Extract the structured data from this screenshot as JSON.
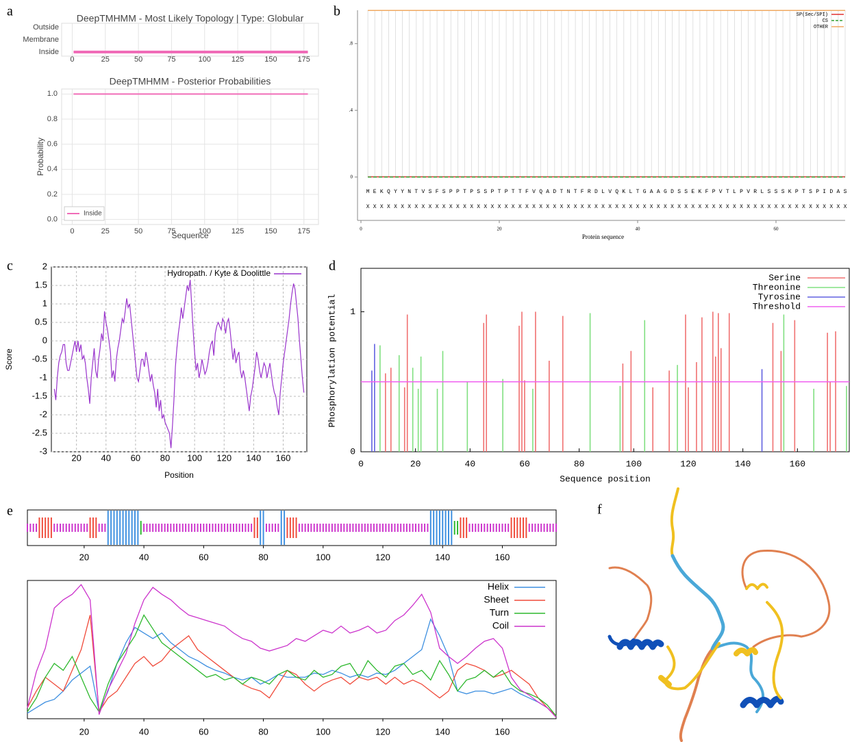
{
  "panel_labels": [
    "a",
    "b",
    "c",
    "d",
    "e",
    "f"
  ],
  "chart_data": [
    {
      "type": "topology",
      "title": "DeepTMHMM - Most Likely Topology | Type: Globular",
      "ycategories": [
        "Outside",
        "Membrane",
        "Inside"
      ],
      "segments": [
        {
          "state": "Inside",
          "start": 1,
          "end": 178
        }
      ],
      "color": "#f06cb8",
      "xlim": [
        -8,
        186
      ],
      "xticks": [
        0,
        25,
        50,
        75,
        100,
        125,
        150,
        175
      ],
      "grid": true
    },
    {
      "type": "line",
      "title": "DeepTMHMM - Posterior Probabilities",
      "xlabel": "Sequence",
      "ylabel": "Probability",
      "x": [
        1,
        178
      ],
      "series": [
        {
          "name": "Inside",
          "color": "#f06cb8",
          "values": [
            1,
            1
          ]
        }
      ],
      "xlim": [
        -8,
        186
      ],
      "xticks": [
        0,
        25,
        50,
        75,
        100,
        125,
        150,
        175
      ],
      "ylim": [
        -0.04,
        1.04
      ],
      "yticks": [
        {
          "value": 0,
          "label": "0.0"
        },
        0.2,
        0.4,
        0.6,
        0.8,
        {
          "value": 1,
          "label": "1.0"
        }
      ],
      "grid": true,
      "legend": "lower left"
    },
    {
      "type": "line",
      "xlabel": "Protein sequence",
      "sequence": "MEKQYYNTVSFSPPTPSSPTPTTFVQADTNTFRDLVQKLTGAAGDSSEKFPVTLPVRLSSSKPTSPIDAS",
      "sequence2": "XXXXXXXXXXXXXXXXXXXXXXXXXXXXXXXXXXXXXXXXXXXXXXXXXXXXXXXXXXXXXXXXXXXXXX",
      "x": [
        1,
        70
      ],
      "series": [
        {
          "name": "SP(Sec/SPI)",
          "color": "#e03030",
          "values": [
            0.001,
            0.001
          ]
        },
        {
          "name": "CS",
          "color": "#30a030",
          "dash": true,
          "values": [
            0,
            0
          ]
        },
        {
          "name": "OTHER",
          "color": "#f0a860",
          "values": [
            0.999,
            0.999
          ]
        }
      ],
      "xlim": [
        0,
        70
      ],
      "xticks": [
        0,
        20,
        40,
        60
      ],
      "ylim": [
        -0.26,
        1
      ],
      "yticks": [
        0,
        {
          "value": 0.4,
          "label": ".4"
        },
        {
          "value": 0.8,
          "label": ".8"
        }
      ],
      "grid": true,
      "legend": "upper right"
    },
    {
      "type": "line",
      "xlabel": "Position",
      "ylabel": "Score",
      "x": [
        5,
        6,
        7,
        8,
        9,
        10,
        11,
        12,
        13,
        14,
        15,
        16,
        17,
        18,
        19,
        20,
        21,
        22,
        23,
        24,
        25,
        26,
        27,
        28,
        29,
        30,
        31,
        32,
        33,
        34,
        35,
        36,
        37,
        38,
        39,
        40,
        41,
        42,
        43,
        44,
        45,
        46,
        47,
        48,
        49,
        50,
        51,
        52,
        53,
        54,
        55,
        56,
        57,
        58,
        59,
        60,
        61,
        62,
        63,
        64,
        65,
        66,
        67,
        68,
        69,
        70,
        71,
        72,
        73,
        74,
        75,
        76,
        77,
        78,
        79,
        80,
        81,
        82,
        83,
        84,
        85,
        86,
        87,
        88,
        89,
        90,
        91,
        92,
        93,
        94,
        95,
        96,
        97,
        98,
        99,
        100,
        101,
        102,
        103,
        104,
        105,
        106,
        107,
        108,
        109,
        110,
        111,
        112,
        113,
        114,
        115,
        116,
        117,
        118,
        119,
        120,
        121,
        122,
        123,
        124,
        125,
        126,
        127,
        128,
        129,
        130,
        131,
        132,
        133,
        134,
        135,
        136,
        137,
        138,
        139,
        140,
        141,
        142,
        143,
        144,
        145,
        146,
        147,
        148,
        149,
        150,
        151,
        152,
        153,
        154,
        155,
        156,
        157,
        158,
        159,
        160,
        161,
        162,
        163,
        164,
        165,
        166,
        167,
        168,
        169,
        170,
        171,
        172,
        173,
        174
      ],
      "series": [
        {
          "name": "Hydropath. / Kyte & Doolittle",
          "color": "#9933cc",
          "values": [
            -1.3,
            -1.6,
            -1.0,
            -0.6,
            -0.4,
            -0.3,
            -0.1,
            -0.1,
            -0.6,
            -0.8,
            -0.8,
            -0.6,
            -0.4,
            -0.2,
            0,
            -0.3,
            0,
            -0.3,
            -0.1,
            -0.5,
            -0.4,
            -0.6,
            -1.0,
            -1.3,
            -1.7,
            -1.0,
            -0.6,
            -0.2,
            -0.8,
            -1.0,
            -0.5,
            -0.2,
            0.2,
            0.0,
            0.8,
            0.5,
            0.3,
            0.0,
            -0.3,
            -1.0,
            -0.8,
            -1.1,
            -0.5,
            -0.2,
            0.0,
            0.3,
            0.6,
            0.5,
            0.8,
            1.15,
            0.9,
            1.0,
            0.6,
            0.2,
            -0.2,
            -0.6,
            -1.0,
            -1.1,
            -0.8,
            -0.5,
            -0.5,
            -0.7,
            -0.3,
            -0.5,
            -0.8,
            -1.1,
            -0.9,
            -1.2,
            -1.4,
            -1.8,
            -1.3,
            -1.9,
            -1.6,
            -2.1,
            -2.0,
            -2.2,
            -2.3,
            -2.4,
            -2.5,
            -2.9,
            -2.3,
            -1.6,
            -0.7,
            -0.2,
            0.2,
            0.5,
            0.9,
            0.6,
            0.9,
            1.2,
            1.5,
            1.35,
            1.65,
            1.0,
            0.3,
            -0.3,
            -0.8,
            -0.6,
            -1.0,
            -0.8,
            -0.5,
            -0.7,
            -0.9,
            -0.8,
            -0.6,
            -0.3,
            -0.1,
            0.0,
            -0.4,
            0.2,
            0.4,
            0.5,
            0.4,
            0.3,
            0.6,
            0.5,
            0.2,
            0.5,
            0.6,
            0.3,
            -0.1,
            -0.5,
            -0.2,
            -0.6,
            -0.4,
            -0.3,
            -0.8,
            -1.0,
            -0.8,
            -1.0,
            -1.3,
            -1.6,
            -1.9,
            -1.5,
            -1.3,
            -1.0,
            -0.7,
            -0.3,
            -0.5,
            -0.8,
            -1.0,
            -0.8,
            -0.6,
            -0.7,
            -1.0,
            -0.8,
            -0.6,
            -0.9,
            -1.2,
            -1.4,
            -1.5,
            -1.8,
            -2.0,
            -1.4,
            -1.0,
            -0.6,
            -0.3,
            0.0,
            0.3,
            0.6,
            1.0,
            1.3,
            1.55,
            1.4,
            1.0,
            0.6,
            0.0,
            -0.5,
            -1.0,
            -1.4
          ]
        }
      ],
      "xlim": [
        3,
        176
      ],
      "xticks": [
        20,
        40,
        60,
        80,
        100,
        120,
        140,
        160
      ],
      "ylim": [
        -3,
        2
      ],
      "yticks": [
        -3,
        -2.5,
        -2,
        -1.5,
        -1,
        -0.5,
        0,
        0.5,
        1,
        1.5,
        2
      ],
      "grid": true,
      "legend": "upper right"
    },
    {
      "type": "bar",
      "xlabel": "Sequence position",
      "ylabel": "Phosphorylation potential",
      "series": [
        {
          "name": "Serine",
          "color": "#f07070",
          "x": [
            9,
            11,
            16,
            17,
            45,
            46,
            58,
            59,
            60,
            64,
            69,
            74,
            96,
            99,
            107,
            113,
            119,
            120,
            123,
            125,
            129,
            130,
            131,
            132,
            135,
            151,
            154,
            159,
            171,
            172,
            174
          ],
          "values": [
            0.56,
            0.6,
            0.46,
            0.98,
            0.92,
            0.98,
            0.9,
            1.0,
            0.51,
            1.0,
            0.65,
            0.97,
            0.63,
            0.72,
            0.46,
            0.58,
            0.98,
            0.46,
            0.64,
            0.96,
            1.0,
            0.68,
            0.99,
            0.74,
            0.99,
            0.92,
            0.72,
            0.94,
            0.85,
            0.5,
            0.86
          ]
        },
        {
          "name": "Threonine",
          "color": "#80e080",
          "x": [
            7,
            14,
            19,
            21,
            22,
            28,
            30,
            39,
            52,
            63,
            84,
            95,
            104,
            116,
            155,
            166,
            178
          ],
          "values": [
            0.76,
            0.69,
            0.6,
            0.45,
            0.68,
            0.45,
            0.72,
            0.5,
            0.52,
            0.45,
            0.99,
            0.47,
            0.94,
            0.62,
            0.98,
            0.45,
            0.47
          ]
        },
        {
          "name": "Tyrosine",
          "color": "#6060e0",
          "x": [
            4,
            5,
            147
          ],
          "values": [
            0.58,
            0.77,
            0.59
          ]
        },
        {
          "name": "Threshold",
          "color": "#f060f0",
          "style": "line",
          "x": [
            0,
            179
          ],
          "values": [
            0.5,
            0.5
          ]
        }
      ],
      "xlim": [
        0,
        179
      ],
      "xticks": [
        0,
        20,
        40,
        60,
        80,
        100,
        120,
        140,
        160
      ],
      "ylim": [
        0,
        1.31
      ],
      "yticks": [
        0,
        1
      ],
      "legend": "upper right"
    },
    {
      "type": "secondary-structure",
      "x": [
        1,
        4,
        7,
        10,
        13,
        16,
        19,
        22,
        25,
        28,
        31,
        34,
        37,
        40,
        43,
        46,
        49,
        52,
        55,
        58,
        61,
        64,
        67,
        70,
        73,
        76,
        79,
        82,
        85,
        88,
        91,
        94,
        97,
        100,
        103,
        106,
        109,
        112,
        115,
        118,
        121,
        124,
        127,
        130,
        133,
        136,
        139,
        142,
        145,
        148,
        151,
        154,
        157,
        160,
        163,
        166,
        169,
        172,
        175,
        178
      ],
      "series": [
        {
          "name": "Helix",
          "color": "#3d8fe0",
          "segments": [
            [
              28,
              38
            ],
            [
              79,
              80
            ],
            [
              86,
              87
            ],
            [
              136,
              143
            ]
          ],
          "values": [
            0.04,
            0.08,
            0.12,
            0.14,
            0.2,
            0.28,
            0.33,
            0.38,
            0.05,
            0.2,
            0.4,
            0.55,
            0.66,
            0.62,
            0.58,
            0.62,
            0.55,
            0.5,
            0.45,
            0.42,
            0.38,
            0.35,
            0.33,
            0.3,
            0.28,
            0.3,
            0.25,
            0.28,
            0.32,
            0.3,
            0.3,
            0.3,
            0.33,
            0.32,
            0.35,
            0.33,
            0.3,
            0.32,
            0.3,
            0.33,
            0.32,
            0.35,
            0.4,
            0.45,
            0.5,
            0.72,
            0.6,
            0.45,
            0.2,
            0.18,
            0.2,
            0.2,
            0.18,
            0.2,
            0.22,
            0.18,
            0.15,
            0.12,
            0.08,
            0.02
          ]
        },
        {
          "name": "Sheet",
          "color": "#f04a3a",
          "segments": [
            [
              5,
              9
            ],
            [
              22,
              24
            ],
            [
              77,
              78
            ],
            [
              88,
              91
            ],
            [
              146,
              148
            ],
            [
              163,
              168
            ]
          ],
          "values": [
            0.08,
            0.2,
            0.3,
            0.25,
            0.2,
            0.35,
            0.5,
            0.75,
            0.05,
            0.15,
            0.2,
            0.3,
            0.4,
            0.45,
            0.38,
            0.42,
            0.5,
            0.55,
            0.6,
            0.5,
            0.45,
            0.4,
            0.35,
            0.3,
            0.25,
            0.22,
            0.2,
            0.15,
            0.25,
            0.35,
            0.32,
            0.25,
            0.2,
            0.25,
            0.28,
            0.3,
            0.25,
            0.3,
            0.28,
            0.3,
            0.25,
            0.3,
            0.25,
            0.28,
            0.25,
            0.2,
            0.15,
            0.2,
            0.35,
            0.4,
            0.38,
            0.35,
            0.3,
            0.32,
            0.35,
            0.3,
            0.25,
            0.15,
            0.08,
            0.02
          ]
        },
        {
          "name": "Turn",
          "color": "#2db82d",
          "segments": [
            [
              39,
              39
            ],
            [
              144,
              145
            ]
          ],
          "values": [
            0.05,
            0.15,
            0.3,
            0.4,
            0.35,
            0.45,
            0.3,
            0.15,
            0.05,
            0.25,
            0.4,
            0.5,
            0.6,
            0.75,
            0.65,
            0.55,
            0.5,
            0.45,
            0.4,
            0.35,
            0.3,
            0.32,
            0.28,
            0.3,
            0.25,
            0.3,
            0.28,
            0.25,
            0.32,
            0.35,
            0.3,
            0.28,
            0.35,
            0.3,
            0.32,
            0.38,
            0.4,
            0.3,
            0.42,
            0.35,
            0.3,
            0.38,
            0.4,
            0.32,
            0.35,
            0.28,
            0.42,
            0.32,
            0.2,
            0.28,
            0.3,
            0.35,
            0.3,
            0.35,
            0.25,
            0.2,
            0.18,
            0.15,
            0.1,
            0.02
          ]
        },
        {
          "name": "Coil",
          "color": "#cc33cc",
          "segments": [
            [
              1,
              4
            ],
            [
              10,
              21
            ],
            [
              25,
              27
            ],
            [
              40,
              76
            ],
            [
              81,
              85
            ],
            [
              92,
              135
            ],
            [
              149,
              162
            ],
            [
              169,
              178
            ]
          ],
          "values": [
            0.08,
            0.34,
            0.51,
            0.8,
            0.86,
            0.9,
            0.97,
            0.86,
            0.03,
            0.21,
            0.34,
            0.47,
            0.69,
            0.86,
            0.95,
            0.9,
            0.86,
            0.8,
            0.75,
            0.73,
            0.71,
            0.69,
            0.67,
            0.62,
            0.58,
            0.56,
            0.51,
            0.49,
            0.51,
            0.53,
            0.58,
            0.56,
            0.6,
            0.64,
            0.62,
            0.67,
            0.62,
            0.64,
            0.67,
            0.62,
            0.64,
            0.71,
            0.75,
            0.82,
            0.9,
            0.77,
            0.51,
            0.45,
            0.4,
            0.45,
            0.51,
            0.56,
            0.58,
            0.51,
            0.3,
            0.21,
            0.17,
            0.12,
            0.08,
            0.01
          ]
        }
      ],
      "xlim": [
        1,
        178
      ],
      "xticks": [
        20,
        40,
        60,
        80,
        100,
        120,
        140,
        160
      ],
      "ylim": [
        0,
        1
      ],
      "legend": "upper right"
    }
  ]
}
